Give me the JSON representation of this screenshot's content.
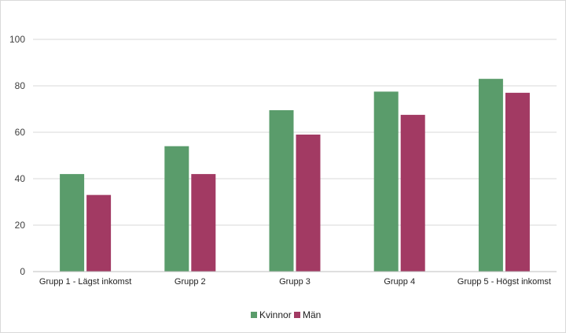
{
  "chart_data": {
    "type": "bar",
    "categories": [
      "Grupp 1 - Lägst inkomst",
      "Grupp 2",
      "Grupp 3",
      "Grupp 4",
      "Grupp 5 - Högst inkomst"
    ],
    "series": [
      {
        "name": "Kvinnor",
        "values": [
          42,
          54,
          69.5,
          77.5,
          83
        ],
        "color": "#5a9c6b"
      },
      {
        "name": "Män",
        "values": [
          33,
          42,
          59,
          67.5,
          77
        ],
        "color": "#a23a63"
      }
    ],
    "title": "",
    "xlabel": "",
    "ylabel": "",
    "ylim": [
      0,
      100
    ],
    "yticks": [
      0,
      20,
      40,
      60,
      80,
      100
    ],
    "grid": true,
    "legend_position": "bottom"
  }
}
